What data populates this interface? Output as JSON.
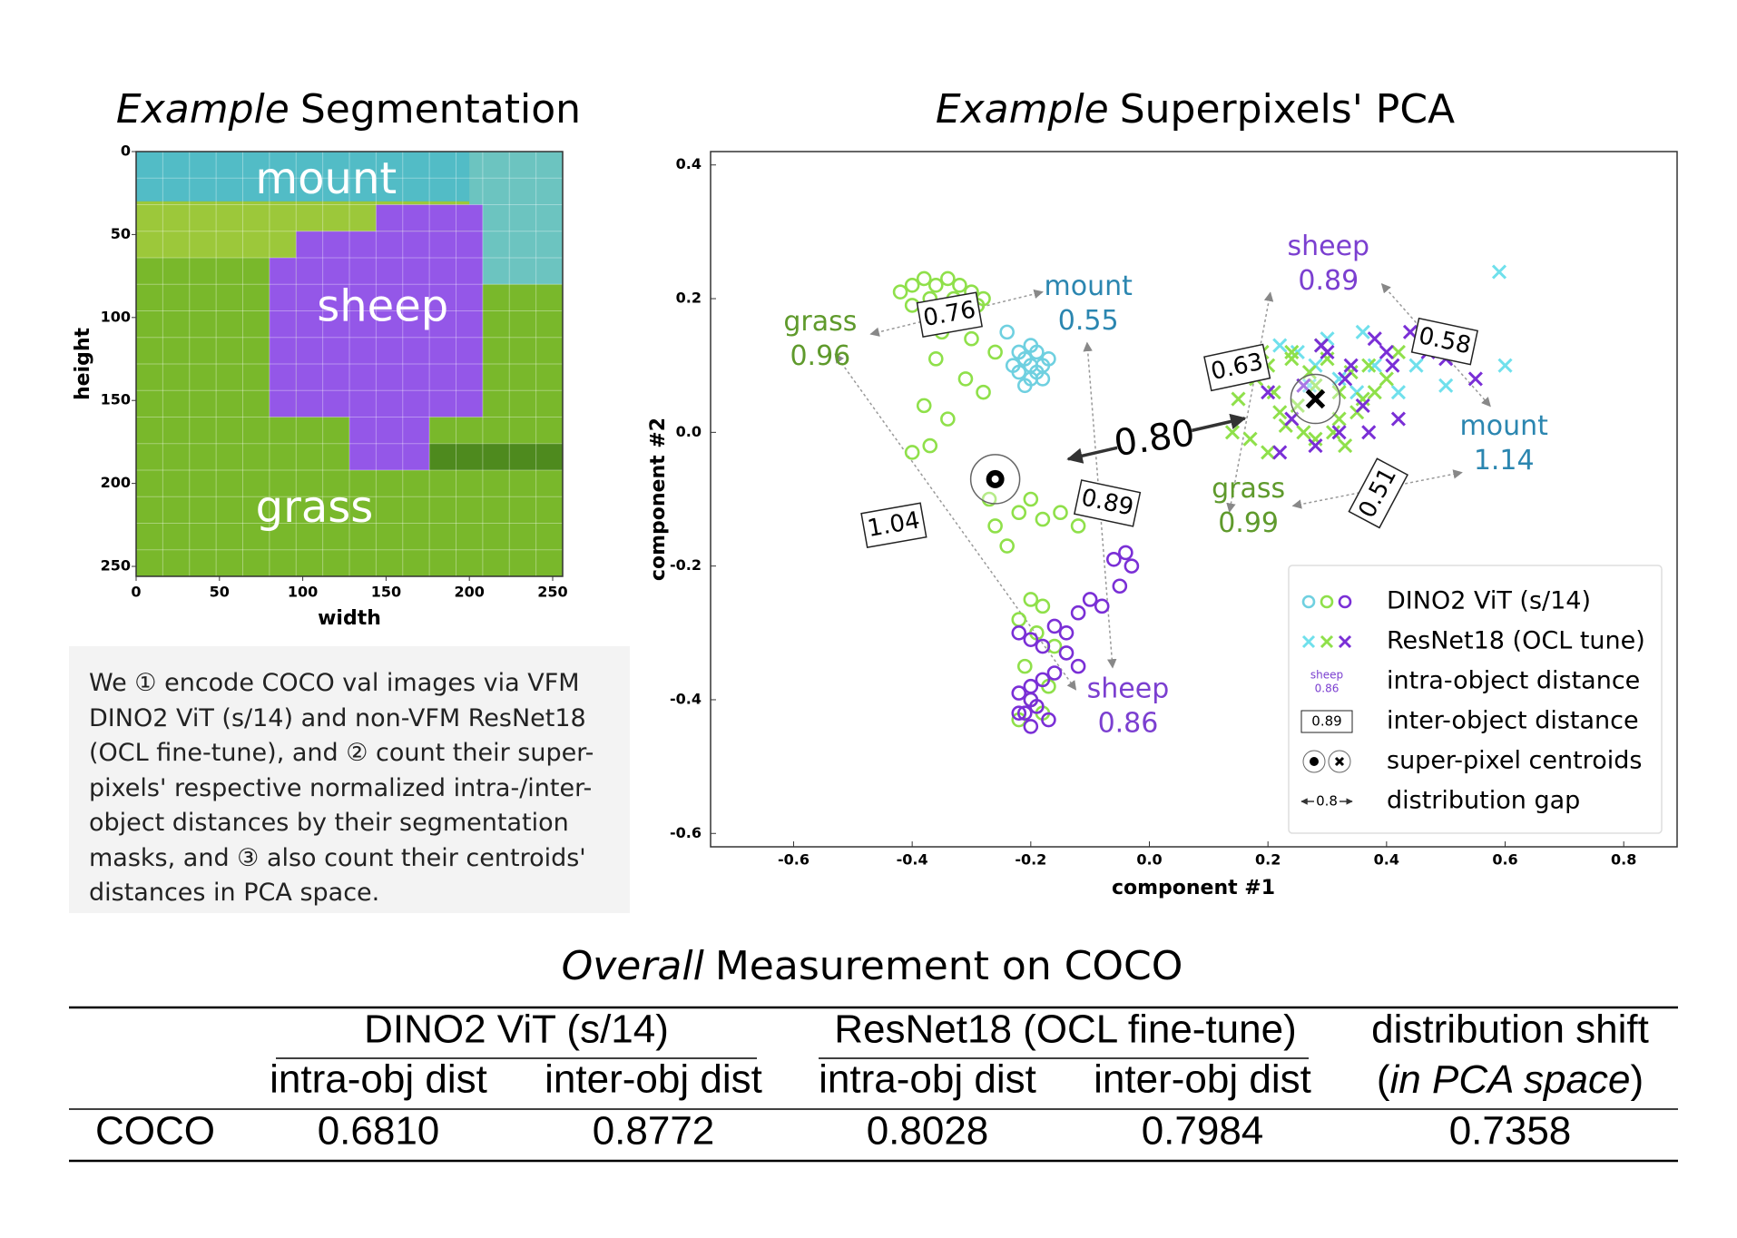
{
  "chart_data": [
    {
      "type": "image",
      "title_em": "Example",
      "title": "Segmentation",
      "xlabel": "width",
      "ylabel": "height",
      "xlim": [
        0,
        256
      ],
      "ylim": [
        0,
        256
      ],
      "y_inverted": true,
      "xticks": [
        0,
        50,
        100,
        150,
        200,
        250
      ],
      "yticks": [
        0,
        50,
        100,
        150,
        200,
        250
      ],
      "region_labels": [
        "mount",
        "sheep",
        "grass"
      ]
    },
    {
      "type": "scatter",
      "title_em": "Example",
      "title": "Superpixels' PCA",
      "xlabel": "component #1",
      "ylabel": "component #2",
      "xlim": [
        -0.74,
        0.89
      ],
      "ylim": [
        -0.62,
        0.42
      ],
      "xticks": [
        -0.6,
        -0.4,
        -0.2,
        {
          "value": 0,
          "label": "0.0"
        },
        0.2,
        0.4,
        0.6,
        0.8
      ],
      "yticks": [
        0.4,
        0.2,
        {
          "value": 0,
          "label": "0.0"
        },
        -0.2,
        -0.4,
        -0.6
      ],
      "legend": "lower right",
      "series": [
        {
          "name": "DINO2 ViT (s/14)",
          "marker": "circle",
          "centroid": {
            "x": -0.26,
            "y": -0.07
          },
          "groups": [
            {
              "color": "#6fd0e0",
              "x": [
                -0.22,
                -0.21,
                -0.2,
                -0.19,
                -0.18,
                -0.2,
                -0.22,
                -0.19,
                -0.21,
                -0.17,
                -0.23,
                -0.2,
                -0.18,
                -0.24
              ],
              "y": [
                0.12,
                0.11,
                0.1,
                0.09,
                0.1,
                0.08,
                0.09,
                0.12,
                0.07,
                0.11,
                0.1,
                0.13,
                0.08,
                0.15
              ]
            },
            {
              "color": "#8fe04a",
              "x": [
                -0.42,
                -0.4,
                -0.38,
                -0.36,
                -0.34,
                -0.32,
                -0.3,
                -0.28,
                -0.4,
                -0.37,
                -0.33,
                -0.29,
                -0.35,
                -0.3,
                -0.26,
                -0.36,
                -0.31,
                -0.28,
                -0.38,
                -0.34,
                -0.37,
                -0.4,
                -0.27,
                -0.26,
                -0.22,
                -0.2,
                -0.18,
                -0.15,
                -0.12,
                -0.24,
                -0.2,
                -0.18,
                -0.22,
                -0.19,
                -0.16,
                -0.21,
                -0.17,
                -0.2,
                -0.18,
                -0.22
              ],
              "y": [
                0.21,
                0.22,
                0.23,
                0.22,
                0.23,
                0.22,
                0.21,
                0.2,
                0.19,
                0.2,
                0.2,
                0.19,
                0.15,
                0.14,
                0.12,
                0.11,
                0.08,
                0.06,
                0.04,
                0.02,
                -0.02,
                -0.03,
                -0.1,
                -0.14,
                -0.12,
                -0.1,
                -0.13,
                -0.12,
                -0.14,
                -0.17,
                -0.25,
                -0.26,
                -0.28,
                -0.3,
                -0.32,
                -0.35,
                -0.38,
                -0.4,
                -0.42,
                -0.43
              ]
            },
            {
              "color": "#7a2fd6",
              "x": [
                -0.04,
                -0.03,
                -0.06,
                -0.05,
                -0.08,
                -0.1,
                -0.12,
                -0.14,
                -0.16,
                -0.18,
                -0.2,
                -0.22,
                -0.14,
                -0.12,
                -0.16,
                -0.2,
                -0.22,
                -0.18,
                -0.2,
                -0.21,
                -0.19,
                -0.17,
                -0.2,
                -0.22
              ],
              "y": [
                -0.18,
                -0.2,
                -0.19,
                -0.23,
                -0.26,
                -0.25,
                -0.27,
                -0.3,
                -0.29,
                -0.32,
                -0.31,
                -0.3,
                -0.33,
                -0.35,
                -0.36,
                -0.38,
                -0.39,
                -0.37,
                -0.4,
                -0.42,
                -0.41,
                -0.43,
                -0.44,
                -0.42
              ]
            }
          ]
        },
        {
          "name": "ResNet18 (OCL tune)",
          "marker": "x",
          "centroid": {
            "x": 0.28,
            "y": 0.05
          },
          "groups": [
            {
              "color": "#6fe0ec",
              "x": [
                0.25,
                0.28,
                0.32,
                0.35,
                0.38,
                0.3,
                0.27,
                0.45,
                0.5,
                0.6,
                0.22,
                0.42,
                0.36,
                0.59
              ],
              "y": [
                0.12,
                0.1,
                0.08,
                0.06,
                0.1,
                0.14,
                0.07,
                0.1,
                0.07,
                0.1,
                0.13,
                0.06,
                0.15,
                0.24
              ]
            },
            {
              "color": "#8fe04a",
              "x": [
                0.15,
                0.18,
                0.2,
                0.22,
                0.24,
                0.26,
                0.28,
                0.3,
                0.32,
                0.34,
                0.36,
                0.38,
                0.17,
                0.21,
                0.25,
                0.29,
                0.33,
                0.37,
                0.19,
                0.23,
                0.27,
                0.31,
                0.35,
                0.2,
                0.24,
                0.28,
                0.32,
                0.14,
                0.4,
                0.42
              ],
              "y": [
                0.05,
                0.08,
                0.1,
                0.03,
                0.12,
                0.0,
                0.07,
                0.11,
                0.02,
                0.09,
                0.05,
                0.06,
                -0.01,
                0.06,
                0.04,
                0.13,
                -0.02,
                0.1,
                0.12,
                0.01,
                0.09,
                0.0,
                0.03,
                -0.03,
                0.11,
                -0.01,
                0.06,
                0.0,
                0.08,
                0.12
              ]
            },
            {
              "color": "#7a2fd6",
              "x": [
                0.26,
                0.3,
                0.34,
                0.38,
                0.4,
                0.36,
                0.32,
                0.28,
                0.24,
                0.22,
                0.44,
                0.47,
                0.42,
                0.5,
                0.55,
                0.33,
                0.29,
                0.37,
                0.2,
                0.41
              ],
              "y": [
                0.07,
                0.12,
                0.1,
                0.14,
                0.12,
                0.04,
                0.0,
                -0.02,
                0.02,
                -0.03,
                0.15,
                0.12,
                0.02,
                0.11,
                0.08,
                0.08,
                0.13,
                0.0,
                0.06,
                0.1
              ]
            }
          ]
        }
      ],
      "intra_labels": [
        {
          "label": "grass",
          "value": 0.96,
          "color": "#5f9a2c"
        },
        {
          "label": "mount",
          "value": 0.55,
          "color": "#2b86b0"
        },
        {
          "label": "sheep",
          "value": 0.86,
          "color": "#7b3fd0"
        },
        {
          "label": "sheep",
          "value": 0.89,
          "color": "#7b3fd0"
        },
        {
          "label": "mount",
          "value": 1.14,
          "color": "#2b86b0"
        },
        {
          "label": "grass",
          "value": 0.99,
          "color": "#5f9a2c"
        }
      ],
      "inter_labels": [
        0.76,
        1.04,
        0.89,
        0.63,
        0.58,
        0.51
      ],
      "gap": {
        "value": 0.8,
        "label": "0.80"
      },
      "legend_items": [
        {
          "label": "intra-object distance",
          "icon": [
            "sheep",
            "0.86"
          ]
        },
        {
          "label": "inter-object distance",
          "icon": [
            "0.89"
          ]
        },
        {
          "label": "super-pixel centroids"
        },
        {
          "label": "distribution gap",
          "icon": [
            "0.8"
          ]
        }
      ]
    }
  ],
  "caption": "We ① encode COCO val images via VFM DINO2 ViT (s/14) and non-VFM ResNet18 (OCL fine-tune), and ② count their super-pixels' respective normalized intra-/inter-object distances by their segmentation masks, and ③ also count their centroids' distances in PCA space.",
  "table": {
    "title_em": "Overall",
    "title": "Measurement on COCO",
    "groups": [
      "DINO2 ViT (s/14)",
      "ResNet18 (OCL fine-tune)",
      "distribution shift"
    ],
    "subheaders": [
      "intra-obj dist",
      "inter-obj dist",
      "intra-obj dist",
      "inter-obj dist"
    ],
    "shift_sub": [
      "(",
      "in PCA space",
      ")"
    ],
    "rows": [
      [
        "COCO",
        "0.6810",
        "0.8772",
        "0.8028",
        "0.7984",
        "0.7358"
      ]
    ]
  }
}
